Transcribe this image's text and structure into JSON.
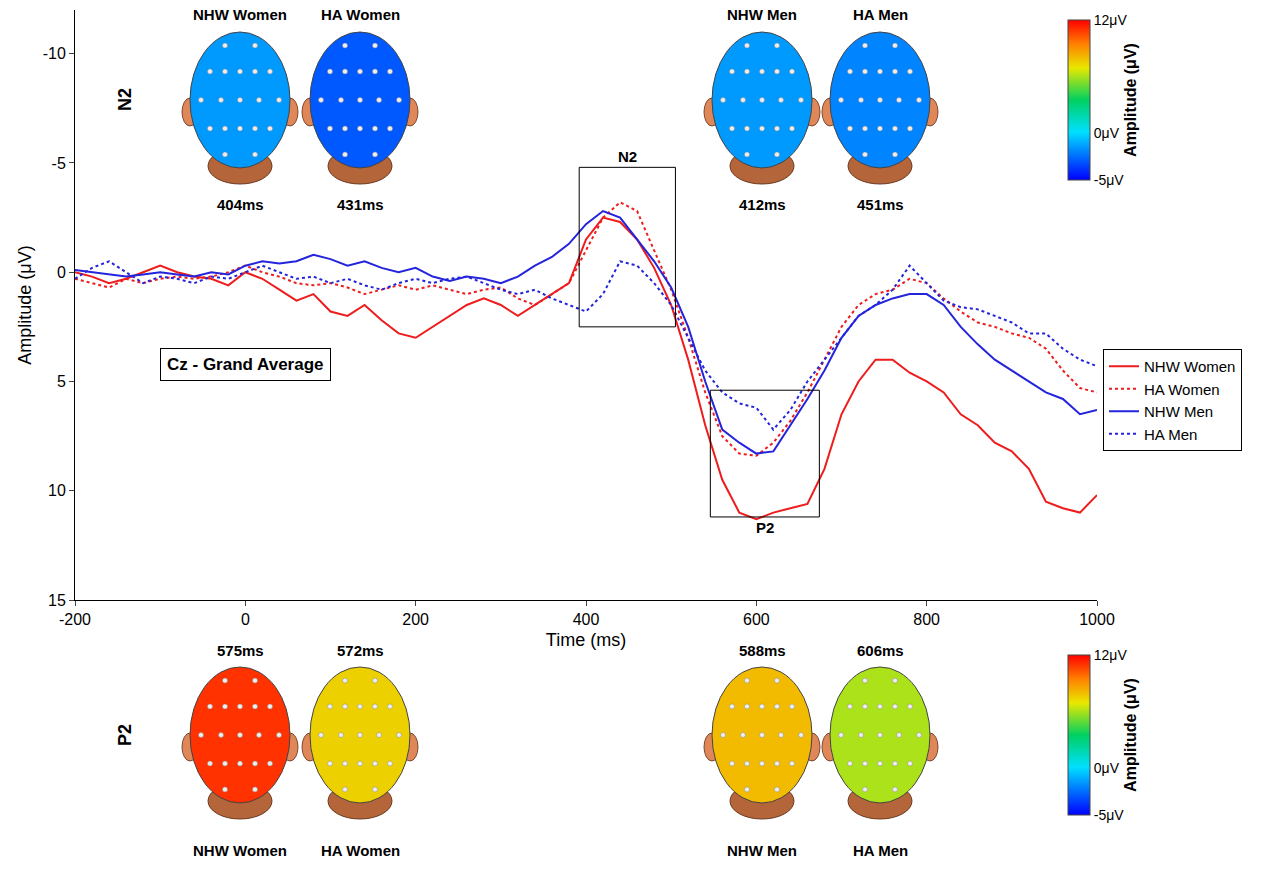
{
  "chart_data": {
    "type": "line",
    "x_label": "Time (ms)",
    "y_label": "Amplitude (μV)",
    "x": [
      -200,
      -180,
      -160,
      -140,
      -120,
      -100,
      -80,
      -60,
      -40,
      -20,
      0,
      20,
      40,
      60,
      80,
      100,
      120,
      140,
      160,
      180,
      200,
      220,
      240,
      260,
      280,
      300,
      320,
      340,
      360,
      380,
      400,
      420,
      440,
      460,
      480,
      500,
      520,
      540,
      560,
      580,
      600,
      620,
      640,
      660,
      680,
      700,
      720,
      740,
      760,
      780,
      800,
      820,
      840,
      860,
      880,
      900,
      920,
      940,
      960,
      980,
      1000
    ],
    "xlim": [
      -200,
      1000
    ],
    "xticks": [
      -200,
      0,
      200,
      400,
      600,
      800,
      1000
    ],
    "ylim": [
      15,
      -12
    ],
    "yticks": [
      -10,
      -5,
      0,
      5,
      10,
      15
    ],
    "grid": false,
    "legend": "right",
    "series": [
      {
        "name": "NHW Women",
        "color": "#ee1c1c",
        "line_style": "solid",
        "values": [
          0,
          0.2,
          0.5,
          0.3,
          0,
          -0.3,
          0,
          0.2,
          0.3,
          0.6,
          0,
          0.3,
          0.8,
          1.3,
          1.0,
          1.8,
          2.0,
          1.5,
          2.2,
          2.8,
          3.0,
          2.5,
          2.0,
          1.5,
          1.2,
          1.5,
          2.0,
          1.5,
          1.0,
          0.5,
          -1.5,
          -2.5,
          -2.3,
          -1.5,
          -0.2,
          1.5,
          4.0,
          7.0,
          9.5,
          11.0,
          11.3,
          11.0,
          10.8,
          10.6,
          9.0,
          6.5,
          5.0,
          4.0,
          4.0,
          4.6,
          5.0,
          5.5,
          6.5,
          7.0,
          7.8,
          8.2,
          9.0,
          10.5,
          10.8,
          11.0,
          10.2
        ]
      },
      {
        "name": "HA Women",
        "color": "#ee1c1c",
        "line_style": "dotted",
        "values": [
          0.3,
          0.5,
          0.7,
          0.3,
          0.5,
          0.3,
          0.2,
          0.3,
          0.2,
          0,
          -0.3,
          0,
          0.2,
          0.5,
          0.6,
          0.5,
          0.7,
          1.0,
          0.8,
          0.6,
          0.8,
          0.6,
          0.8,
          1.0,
          0.8,
          0.7,
          1.2,
          1.5,
          1.0,
          0.5,
          -1.0,
          -2.5,
          -3.2,
          -2.8,
          -1.0,
          0.8,
          3.0,
          5.5,
          7.5,
          8.3,
          8.4,
          7.8,
          6.8,
          5.5,
          4.0,
          2.5,
          1.5,
          1.0,
          0.8,
          0.3,
          0.5,
          1.2,
          1.8,
          2.3,
          2.5,
          2.8,
          3.0,
          3.5,
          4.5,
          5.3,
          5.5
        ]
      },
      {
        "name": "NHW Men",
        "color": "#2424dc",
        "line_style": "solid",
        "values": [
          -0.1,
          0,
          0.1,
          0.2,
          0.1,
          0,
          0.1,
          0.2,
          0,
          0.1,
          -0.3,
          -0.5,
          -0.4,
          -0.5,
          -0.8,
          -0.6,
          -0.3,
          -0.5,
          -0.2,
          0,
          -0.2,
          0.2,
          0.4,
          0.2,
          0.3,
          0.5,
          0.2,
          -0.3,
          -0.7,
          -1.3,
          -2.2,
          -2.8,
          -2.5,
          -1.5,
          -0.5,
          0.7,
          2.5,
          5.0,
          7.2,
          7.8,
          8.3,
          8.2,
          7.0,
          5.8,
          4.5,
          3.0,
          2.0,
          1.5,
          1.2,
          1.0,
          1.0,
          1.5,
          2.5,
          3.3,
          4.0,
          4.5,
          5.0,
          5.5,
          5.8,
          6.5,
          6.3
        ]
      },
      {
        "name": "HA Men",
        "color": "#2424dc",
        "line_style": "dotted",
        "values": [
          0.3,
          -0.2,
          -0.5,
          0,
          0.5,
          0.2,
          0.3,
          0.5,
          0.2,
          0.3,
          0,
          -0.3,
          0,
          0.3,
          0.2,
          0.5,
          0.3,
          0.6,
          0.8,
          0.5,
          0.3,
          0.5,
          0.3,
          0.2,
          0.5,
          0.8,
          1.0,
          0.8,
          1.2,
          1.5,
          1.8,
          1.0,
          -0.5,
          -0.3,
          0.5,
          1.5,
          3.0,
          4.5,
          5.5,
          6.0,
          6.2,
          7.2,
          6.3,
          5.0,
          4.0,
          3.0,
          2.0,
          1.5,
          0.8,
          -0.3,
          0.5,
          1.3,
          1.6,
          1.7,
          2.0,
          2.3,
          2.8,
          2.8,
          3.5,
          4.0,
          4.3
        ]
      }
    ],
    "annotations": [
      "Cz - Grand Average"
    ],
    "windows": [
      {
        "label": "N2",
        "x": [
          392,
          505
        ],
        "y": [
          -4.8,
          2.5
        ]
      },
      {
        "label": "P2",
        "x": [
          546,
          674
        ],
        "y": [
          5.4,
          11.2
        ]
      }
    ],
    "colorbar": {
      "title": "Amplitude (μV)",
      "range": [
        -5,
        12
      ],
      "ticks": [
        {
          "value": 12,
          "label": "12μV"
        },
        {
          "value": 0,
          "label": "0μV"
        },
        {
          "value": -5,
          "label": "-5μV"
        }
      ]
    },
    "topomaps": [
      {
        "component": "N2",
        "group": "NHW Women",
        "latency": "404ms",
        "amplitude": -1.5
      },
      {
        "component": "N2",
        "group": "HA Women",
        "latency": "431ms",
        "amplitude": -3
      },
      {
        "component": "N2",
        "group": "NHW Men",
        "latency": "412ms",
        "amplitude": -1.5
      },
      {
        "component": "N2",
        "group": "HA Men",
        "latency": "451ms",
        "amplitude": -2
      },
      {
        "component": "P2",
        "group": "NHW Women",
        "latency": "575ms",
        "amplitude": 11
      },
      {
        "component": "P2",
        "group": "HA Women",
        "latency": "572ms",
        "amplitude": 7.5
      },
      {
        "component": "P2",
        "group": "NHW Men",
        "latency": "588ms",
        "amplitude": 8
      },
      {
        "component": "P2",
        "group": "HA Men",
        "latency": "606ms",
        "amplitude": 6
      }
    ]
  }
}
